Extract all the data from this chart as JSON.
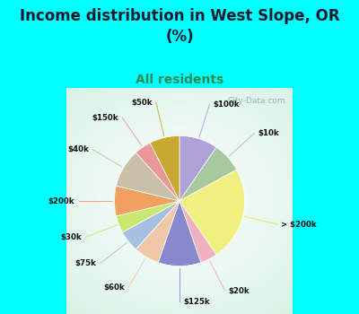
{
  "title": "Income distribution in West Slope, OR\n(%)",
  "subtitle": "All residents",
  "title_color": "#1a1a2e",
  "subtitle_color": "#2e8b57",
  "background_top": "#00FFFF",
  "watermark": "City-Data.com",
  "labels": [
    "$100k",
    "$10k",
    "> $200k",
    "$20k",
    "$125k",
    "$60k",
    "$75k",
    "$30k",
    "$200k",
    "$40k",
    "$150k",
    "$50k"
  ],
  "values": [
    9,
    7,
    22,
    4,
    10,
    6,
    5,
    4,
    7,
    9,
    4,
    7
  ],
  "colors": [
    "#b0a0d8",
    "#a8c8a0",
    "#f0f080",
    "#f0b0c0",
    "#8888cc",
    "#f0c8a8",
    "#a8c0e0",
    "#c8e870",
    "#f0a060",
    "#c8c0a8",
    "#e89898",
    "#c8a830"
  ],
  "line_colors": [
    "#b0a0d8",
    "#a8c8a0",
    "#e8e060",
    "#f0b0c0",
    "#8888cc",
    "#f0c8a8",
    "#a8c0e0",
    "#c8e870",
    "#f0a060",
    "#c8c0a8",
    "#e89898",
    "#c8a830"
  ],
  "startangle": 90,
  "figsize": [
    4.0,
    3.5
  ],
  "dpi": 100
}
